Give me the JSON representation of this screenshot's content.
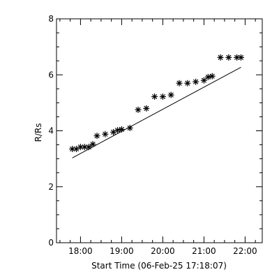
{
  "chart_data": {
    "type": "scatter",
    "title": "",
    "xlabel": "Start Time (06-Feb-25 17:18:07)",
    "ylabel": "R/Rs",
    "x_tick_labels": [
      "18:00",
      "19:00",
      "20:00",
      "21:00",
      "22:00"
    ],
    "x_tick_minutes": [
      0,
      60,
      120,
      180,
      240
    ],
    "y_tick_labels": [
      "0",
      "2",
      "4",
      "6",
      "8"
    ],
    "y_tick_values": [
      0,
      2,
      4,
      6,
      8
    ],
    "xlim_minutes": [
      -35,
      265
    ],
    "ylim": [
      0,
      8
    ],
    "grid": false,
    "marker": "asterisk",
    "series": [
      {
        "x_time": [
          "17:48",
          "17:54",
          "18:00",
          "18:06",
          "18:12",
          "18:18",
          "18:24",
          "18:36",
          "18:48",
          "18:54",
          "19:00",
          "19:12",
          "19:24",
          "19:36",
          "19:48",
          "20:00",
          "20:12",
          "20:24",
          "20:36",
          "20:48",
          "21:00",
          "21:06",
          "21:12",
          "21:24",
          "21:36",
          "21:48",
          "21:54"
        ],
        "x_minutes": [
          -12,
          -6,
          0,
          6,
          12,
          18,
          24,
          36,
          48,
          54,
          60,
          72,
          84,
          96,
          108,
          120,
          132,
          144,
          156,
          168,
          180,
          186,
          192,
          204,
          216,
          228,
          234
        ],
        "y": [
          3.35,
          3.35,
          3.42,
          3.42,
          3.42,
          3.52,
          3.82,
          3.88,
          3.95,
          4.02,
          4.05,
          4.1,
          4.75,
          4.8,
          5.22,
          5.22,
          5.28,
          5.7,
          5.7,
          5.75,
          5.8,
          5.92,
          5.95,
          6.62,
          6.62,
          6.62,
          6.62
        ]
      }
    ],
    "fit_line": {
      "x_minutes": [
        -12,
        234
      ],
      "y": [
        3.03,
        6.27
      ]
    }
  }
}
